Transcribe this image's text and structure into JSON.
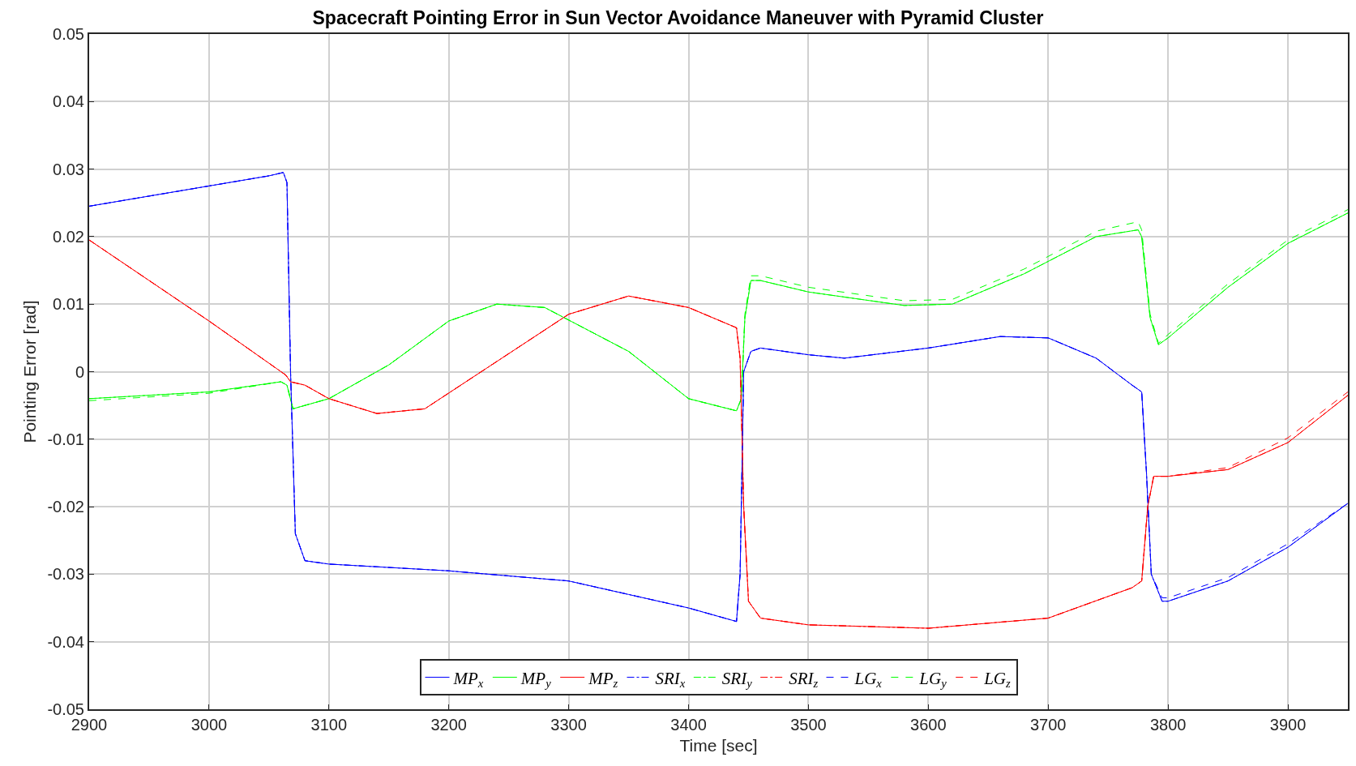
{
  "chart_data": {
    "type": "line",
    "title": "Spacecraft Pointing Error in Sun Vector Avoidance Maneuver with Pyramid Cluster",
    "xlabel": "Time [sec]",
    "ylabel": "Pointing Error [rad]",
    "xlim": [
      2900,
      3950
    ],
    "xticks": [
      2900,
      3000,
      3100,
      3200,
      3300,
      3400,
      3500,
      3600,
      3700,
      3800,
      3900
    ],
    "ylim": [
      -0.05,
      0.05
    ],
    "yticks": [
      -0.05,
      -0.04,
      -0.03,
      -0.02,
      -0.01,
      0,
      0.01,
      0.02,
      0.03,
      0.04,
      0.05
    ],
    "grid": true,
    "legend": "bottom",
    "marker": "none",
    "series": [
      {
        "name": "MP$_{x}$",
        "color": "#0000ff",
        "line_style": "solid",
        "x": [
          2900,
          2950,
          3000,
          3050,
          3062,
          3065,
          3068,
          3072,
          3080,
          3100,
          3200,
          3300,
          3350,
          3400,
          3440,
          3443,
          3446,
          3452,
          3460,
          3500,
          3530,
          3600,
          3660,
          3700,
          3740,
          3770,
          3778,
          3782,
          3786,
          3795,
          3800,
          3850,
          3900,
          3950
        ],
        "values": [
          0.0245,
          0.026,
          0.0275,
          0.029,
          0.0295,
          0.028,
          0.0,
          -0.024,
          -0.028,
          -0.0285,
          -0.0295,
          -0.031,
          -0.033,
          -0.035,
          -0.037,
          -0.03,
          0.0,
          0.003,
          0.0035,
          0.0025,
          0.002,
          0.0035,
          0.0052,
          0.005,
          0.002,
          -0.002,
          -0.003,
          -0.015,
          -0.03,
          -0.034,
          -0.034,
          -0.031,
          -0.026,
          -0.0195
        ]
      },
      {
        "name": "MP$_{y}$",
        "color": "#00ff00",
        "line_style": "solid",
        "x": [
          2900,
          3000,
          3060,
          3065,
          3070,
          3100,
          3150,
          3200,
          3240,
          3280,
          3350,
          3400,
          3440,
          3444,
          3447,
          3452,
          3460,
          3500,
          3580,
          3620,
          3680,
          3740,
          3775,
          3778,
          3785,
          3792,
          3800,
          3850,
          3900,
          3950
        ],
        "values": [
          -0.004,
          -0.003,
          -0.0015,
          -0.002,
          -0.0055,
          -0.004,
          0.001,
          0.0075,
          0.01,
          0.0095,
          0.003,
          -0.004,
          -0.0058,
          -0.004,
          0.008,
          0.0135,
          0.0135,
          0.0118,
          0.0098,
          0.01,
          0.0145,
          0.02,
          0.021,
          0.02,
          0.008,
          0.004,
          0.005,
          0.0125,
          0.019,
          0.0235
        ]
      },
      {
        "name": "MP$_{z}$",
        "color": "#ff0000",
        "line_style": "solid",
        "x": [
          2900,
          2950,
          3000,
          3040,
          3064,
          3068,
          3080,
          3100,
          3140,
          3180,
          3240,
          3300,
          3350,
          3400,
          3440,
          3443,
          3446,
          3450,
          3460,
          3500,
          3600,
          3700,
          3770,
          3778,
          3783,
          3788,
          3800,
          3850,
          3900,
          3950
        ],
        "values": [
          0.0195,
          0.0135,
          0.0075,
          0.0025,
          -0.0005,
          -0.0015,
          -0.002,
          -0.004,
          -0.0062,
          -0.0055,
          0.0015,
          0.0085,
          0.0112,
          0.0095,
          0.0065,
          0.002,
          -0.02,
          -0.034,
          -0.0365,
          -0.0375,
          -0.038,
          -0.0365,
          -0.032,
          -0.031,
          -0.02,
          -0.0155,
          -0.0155,
          -0.0145,
          -0.0105,
          -0.0035
        ]
      },
      {
        "name": "SRI$_{x}$",
        "color": "#0000ff",
        "line_style": "dashdot",
        "x": [
          2900,
          2950,
          3000,
          3050,
          3062,
          3065,
          3068,
          3072,
          3080,
          3100,
          3200,
          3300,
          3350,
          3400,
          3440,
          3443,
          3446,
          3452,
          3460,
          3500,
          3530,
          3600,
          3660,
          3700,
          3740,
          3770,
          3778,
          3782,
          3786,
          3795,
          3800,
          3850,
          3900,
          3950
        ],
        "values": [
          0.0245,
          0.026,
          0.0275,
          0.029,
          0.0295,
          0.028,
          0.0,
          -0.024,
          -0.028,
          -0.0285,
          -0.0295,
          -0.031,
          -0.033,
          -0.035,
          -0.037,
          -0.03,
          0.0,
          0.003,
          0.0035,
          0.0025,
          0.002,
          0.0035,
          0.0052,
          0.005,
          0.002,
          -0.002,
          -0.003,
          -0.015,
          -0.03,
          -0.034,
          -0.034,
          -0.031,
          -0.026,
          -0.0195
        ]
      },
      {
        "name": "SRI$_{y}$",
        "color": "#00ff00",
        "line_style": "dashdot",
        "x": [
          2900,
          3000,
          3060,
          3065,
          3070,
          3100,
          3150,
          3200,
          3240,
          3280,
          3350,
          3400,
          3440,
          3444,
          3447,
          3452,
          3460,
          3500,
          3580,
          3620,
          3680,
          3740,
          3775,
          3778,
          3785,
          3792,
          3800,
          3850,
          3900,
          3950
        ],
        "values": [
          -0.004,
          -0.003,
          -0.0015,
          -0.002,
          -0.0055,
          -0.004,
          0.001,
          0.0075,
          0.01,
          0.0095,
          0.003,
          -0.004,
          -0.0058,
          -0.004,
          0.008,
          0.0135,
          0.0135,
          0.0118,
          0.0098,
          0.01,
          0.0145,
          0.02,
          0.021,
          0.02,
          0.008,
          0.004,
          0.005,
          0.0125,
          0.019,
          0.0235
        ]
      },
      {
        "name": "SRI$_{z}$",
        "color": "#ff0000",
        "line_style": "dashdot",
        "x": [
          2900,
          2950,
          3000,
          3040,
          3064,
          3068,
          3080,
          3100,
          3140,
          3180,
          3240,
          3300,
          3350,
          3400,
          3440,
          3443,
          3446,
          3450,
          3460,
          3500,
          3600,
          3700,
          3770,
          3778,
          3783,
          3788,
          3800,
          3850,
          3900,
          3950
        ],
        "values": [
          0.0195,
          0.0135,
          0.0075,
          0.0025,
          -0.0005,
          -0.0015,
          -0.002,
          -0.004,
          -0.0062,
          -0.0055,
          0.0015,
          0.0085,
          0.0112,
          0.0095,
          0.0065,
          0.002,
          -0.02,
          -0.034,
          -0.0365,
          -0.0375,
          -0.038,
          -0.0365,
          -0.032,
          -0.031,
          -0.02,
          -0.0155,
          -0.0155,
          -0.0145,
          -0.0105,
          -0.0035
        ]
      },
      {
        "name": "LG$_{x}$",
        "color": "#0000ff",
        "line_style": "dashed",
        "x": [
          2900,
          2950,
          3000,
          3050,
          3062,
          3065,
          3068,
          3072,
          3080,
          3100,
          3200,
          3300,
          3350,
          3400,
          3440,
          3443,
          3446,
          3452,
          3460,
          3500,
          3530,
          3600,
          3660,
          3700,
          3740,
          3770,
          3778,
          3782,
          3786,
          3795,
          3800,
          3850,
          3900,
          3950
        ],
        "values": [
          0.0245,
          0.026,
          0.0275,
          0.029,
          0.0295,
          0.028,
          0.0,
          -0.024,
          -0.028,
          -0.0285,
          -0.0295,
          -0.031,
          -0.033,
          -0.035,
          -0.037,
          -0.03,
          0.0,
          0.003,
          0.0035,
          0.0025,
          0.002,
          0.0035,
          0.0052,
          0.005,
          0.002,
          -0.002,
          -0.003,
          -0.015,
          -0.03,
          -0.0335,
          -0.0335,
          -0.0305,
          -0.0255,
          -0.0195
        ]
      },
      {
        "name": "LG$_{y}$",
        "color": "#00ff00",
        "line_style": "dashed",
        "x": [
          2900,
          3000,
          3060,
          3065,
          3070,
          3100,
          3150,
          3200,
          3240,
          3280,
          3350,
          3400,
          3440,
          3444,
          3447,
          3452,
          3460,
          3500,
          3580,
          3620,
          3680,
          3740,
          3775,
          3778,
          3785,
          3792,
          3800,
          3850,
          3900,
          3950
        ],
        "values": [
          -0.0043,
          -0.0032,
          -0.0015,
          -0.002,
          -0.0055,
          -0.004,
          0.001,
          0.0075,
          0.01,
          0.0095,
          0.003,
          -0.004,
          -0.0058,
          -0.004,
          0.0085,
          0.0142,
          0.0142,
          0.0125,
          0.0105,
          0.0107,
          0.0152,
          0.0208,
          0.0222,
          0.021,
          0.0085,
          0.0042,
          0.0055,
          0.013,
          0.0195,
          0.024
        ]
      },
      {
        "name": "LG$_{z}$",
        "color": "#ff0000",
        "line_style": "dashed",
        "x": [
          2900,
          2950,
          3000,
          3040,
          3064,
          3068,
          3080,
          3100,
          3140,
          3180,
          3240,
          3300,
          3350,
          3400,
          3440,
          3443,
          3446,
          3450,
          3460,
          3500,
          3600,
          3700,
          3770,
          3778,
          3783,
          3788,
          3800,
          3850,
          3900,
          3950
        ],
        "values": [
          0.0195,
          0.0135,
          0.0075,
          0.0025,
          -0.0005,
          -0.0015,
          -0.002,
          -0.004,
          -0.0062,
          -0.0055,
          0.0015,
          0.0085,
          0.0112,
          0.0095,
          0.0065,
          0.002,
          -0.02,
          -0.034,
          -0.0365,
          -0.0375,
          -0.038,
          -0.0365,
          -0.032,
          -0.031,
          -0.02,
          -0.0155,
          -0.0155,
          -0.0142,
          -0.0098,
          -0.003
        ]
      }
    ]
  }
}
